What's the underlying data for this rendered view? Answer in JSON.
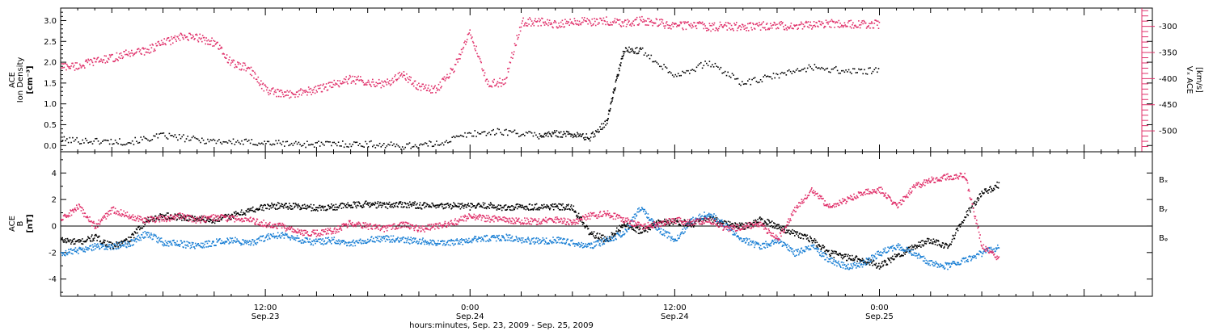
{
  "colors": {
    "black": "#000000",
    "pink": "#e0306a",
    "blue": "#1a7fd4"
  },
  "chart_data": [
    {
      "type": "scatter",
      "panel": "top",
      "ylabel_left_lines": [
        "ACE",
        "Ion Density",
        "[cm⁻³]"
      ],
      "ylabel_right_lines": [
        "Vₓ ACE",
        "[km/s]"
      ],
      "ylim_left": [
        -0.15,
        3.3
      ],
      "yticks_left": [
        0.0,
        0.5,
        1.0,
        1.5,
        2.0,
        2.5,
        3.0
      ],
      "yticklabels_left": [
        "0.0",
        "0.5",
        "1.0",
        "1.5",
        "2.0",
        "2.5",
        "3.0"
      ],
      "ylim_right": [
        -540,
        -265
      ],
      "yticks_right": [
        -500,
        -450,
        -400,
        -350,
        -300
      ],
      "yticklabels_right": [
        "-500",
        "-450",
        "-400",
        "-350",
        "-300"
      ],
      "series": [
        {
          "color": "#000000",
          "axis": "left",
          "x": [
            0,
            2,
            4,
            6,
            8,
            10,
            12,
            14,
            16,
            18,
            20,
            22,
            24,
            26,
            28,
            29,
            30,
            31,
            32,
            32.5,
            33,
            34,
            36,
            38,
            40,
            42,
            44,
            46,
            48
          ],
          "y": [
            0.15,
            0.12,
            0.1,
            0.25,
            0.15,
            0.1,
            0.08,
            0.05,
            0.05,
            0.05,
            0.0,
            0.05,
            0.3,
            0.35,
            0.25,
            0.3,
            0.28,
            0.2,
            0.6,
            1.5,
            2.3,
            2.3,
            1.7,
            2.0,
            1.5,
            1.7,
            1.9,
            1.8,
            1.8
          ]
        },
        {
          "color": "#e0306a",
          "axis": "right",
          "x": [
            0,
            1,
            2,
            3,
            4,
            5,
            6,
            7,
            8,
            9,
            10,
            11,
            12,
            13,
            14,
            15,
            16,
            17,
            18,
            19,
            20,
            21,
            22,
            23,
            24,
            25,
            26,
            27,
            28,
            29,
            30,
            31,
            32,
            33,
            34,
            35,
            36,
            37,
            38,
            39,
            40,
            41,
            42,
            43,
            44,
            45,
            46,
            47,
            48
          ],
          "y": [
            -375,
            -375,
            -365,
            -360,
            -350,
            -345,
            -330,
            -320,
            -320,
            -330,
            -370,
            -380,
            -420,
            -430,
            -425,
            -420,
            -410,
            -400,
            -405,
            -410,
            -390,
            -415,
            -420,
            -380,
            -310,
            -410,
            -405,
            -290,
            -290,
            -295,
            -290,
            -290,
            -288,
            -292,
            -288,
            -292,
            -298,
            -296,
            -300,
            -298,
            -300,
            -298,
            -297,
            -298,
            -296,
            -294,
            -294,
            -295,
            -295
          ]
        }
      ]
    },
    {
      "type": "scatter",
      "panel": "bottom",
      "ylabel_left_lines": [
        "ACE",
        "B",
        "[nT]"
      ],
      "ylim": [
        -5.3,
        5.6
      ],
      "yticks": [
        -4,
        -2,
        0,
        2,
        4
      ],
      "yticklabels": [
        "-4",
        "-2",
        "0",
        "2",
        "4"
      ],
      "legend": [
        "Bₓ",
        "Bᵧ",
        "Bᵩ"
      ],
      "series": [
        {
          "name": "Bₓ",
          "color": "#000000",
          "x": [
            0,
            1,
            2,
            3,
            4,
            5,
            6,
            7,
            8,
            9,
            10,
            11,
            12,
            13,
            14,
            15,
            16,
            17,
            18,
            19,
            20,
            21,
            22,
            23,
            24,
            25,
            26,
            27,
            28,
            29,
            30,
            31,
            32,
            33,
            34,
            35,
            36,
            37,
            38,
            39,
            40,
            41,
            42,
            43,
            44,
            45,
            46,
            47,
            48,
            49,
            50,
            51,
            52,
            53,
            54,
            55
          ],
          "y": [
            -1.0,
            -1.2,
            -0.8,
            -1.5,
            -1.0,
            0.5,
            0.8,
            0.7,
            0.6,
            0.5,
            0.8,
            1.2,
            1.5,
            1.6,
            1.5,
            1.4,
            1.5,
            1.6,
            1.7,
            1.6,
            1.7,
            1.6,
            1.5,
            1.6,
            1.5,
            1.6,
            1.4,
            1.5,
            1.5,
            1.5,
            1.4,
            -0.5,
            -1.0,
            0.2,
            -0.4,
            0.3,
            0.4,
            0.2,
            0.6,
            0.2,
            0.0,
            0.5,
            0.0,
            -0.5,
            -1.0,
            -2.0,
            -2.3,
            -2.5,
            -3.0,
            -2.2,
            -1.5,
            -1.0,
            -1.5,
            0.8,
            2.5,
            3.2
          ]
        },
        {
          "name": "Bᵧ",
          "color": "#1a7fd4",
          "x": [
            0,
            1,
            2,
            3,
            4,
            5,
            6,
            7,
            8,
            9,
            10,
            11,
            12,
            13,
            14,
            15,
            16,
            17,
            18,
            19,
            20,
            21,
            22,
            23,
            24,
            25,
            26,
            27,
            28,
            29,
            30,
            31,
            32,
            33,
            34,
            35,
            36,
            37,
            38,
            39,
            40,
            41,
            42,
            43,
            44,
            45,
            46,
            47,
            48,
            49,
            50,
            51,
            52,
            53,
            54,
            55
          ],
          "y": [
            -2.0,
            -1.8,
            -1.5,
            -1.5,
            -1.3,
            -0.5,
            -1.2,
            -1.3,
            -1.5,
            -1.2,
            -1.0,
            -1.3,
            -0.8,
            -0.6,
            -1.0,
            -1.2,
            -1.0,
            -1.3,
            -1.0,
            -0.9,
            -1.0,
            -1.1,
            -1.2,
            -1.2,
            -1.0,
            -0.9,
            -0.8,
            -1.0,
            -1.1,
            -1.0,
            -1.2,
            -1.5,
            -1.0,
            -0.5,
            1.5,
            -0.2,
            -1.0,
            0.5,
            1.0,
            0.0,
            -1.0,
            -1.5,
            -1.0,
            -2.0,
            -1.5,
            -2.5,
            -3.0,
            -2.8,
            -2.0,
            -1.5,
            -2.0,
            -2.8,
            -3.0,
            -2.5,
            -2.0,
            -1.5
          ]
        },
        {
          "name": "Bᵩ",
          "color": "#e0306a",
          "x": [
            0,
            1,
            2,
            3,
            4,
            5,
            6,
            7,
            8,
            9,
            10,
            11,
            12,
            13,
            14,
            15,
            16,
            17,
            18,
            19,
            20,
            21,
            22,
            23,
            24,
            25,
            26,
            27,
            28,
            29,
            30,
            31,
            32,
            33,
            34,
            35,
            36,
            37,
            38,
            39,
            40,
            41,
            42,
            43,
            44,
            45,
            46,
            47,
            48,
            49,
            50,
            51,
            52,
            53,
            54,
            55
          ],
          "y": [
            0.5,
            1.5,
            0.0,
            1.3,
            0.8,
            0.5,
            0.6,
            0.8,
            0.5,
            0.7,
            0.6,
            0.5,
            0.2,
            0.0,
            -0.5,
            -0.5,
            -0.3,
            0.3,
            0.0,
            -0.2,
            0.2,
            -0.2,
            0.0,
            0.3,
            0.8,
            0.6,
            0.5,
            0.4,
            0.4,
            0.5,
            0.3,
            0.8,
            1.0,
            0.5,
            0.0,
            0.2,
            0.5,
            0.3,
            0.5,
            -0.2,
            0.0,
            0.2,
            -1.0,
            1.2,
            2.8,
            1.5,
            2.0,
            2.5,
            2.8,
            1.5,
            3.0,
            3.5,
            3.8,
            3.8,
            -1.5,
            -2.5
          ]
        }
      ]
    }
  ],
  "xaxis": {
    "xlim": [
      0,
      64
    ],
    "tick_positions": [
      12,
      24,
      36,
      48
    ],
    "tick_labels": [
      [
        "12:00",
        "Sep.23"
      ],
      [
        "0:00",
        "Sep.24"
      ],
      [
        "12:00",
        "Sep.24"
      ],
      [
        "0:00",
        "Sep.25"
      ]
    ],
    "minor_step": 1,
    "xlabel": "hours:minutes, Sep. 23, 2009 - Sep. 25, 2009"
  }
}
